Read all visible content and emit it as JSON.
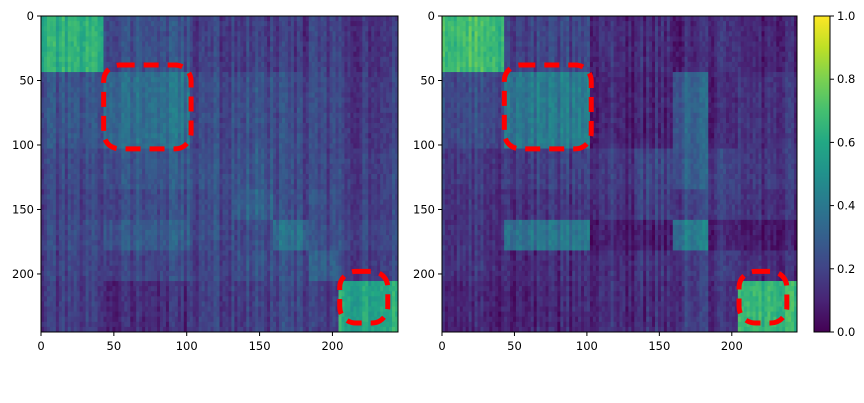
{
  "chart_data": [
    {
      "type": "heatmap",
      "title": "",
      "xlabel": "",
      "ylabel": "",
      "xlim": [
        0,
        245
      ],
      "ylim": [
        245,
        0
      ],
      "x_ticks": [
        "0",
        "50",
        "100",
        "150",
        "200"
      ],
      "y_ticks": [
        "0",
        "50",
        "100",
        "150",
        "200"
      ],
      "colormap": "viridis",
      "value_range": [
        0.0,
        1.0
      ],
      "block_boundaries": [
        0,
        43,
        103,
        133,
        160,
        183,
        205,
        245
      ],
      "blocks": [
        [
          0.62,
          0.24,
          0.18,
          0.18,
          0.16,
          0.18,
          0.16
        ],
        [
          0.24,
          0.36,
          0.22,
          0.24,
          0.22,
          0.2,
          0.18
        ],
        [
          0.2,
          0.26,
          0.24,
          0.26,
          0.22,
          0.2,
          0.2
        ],
        [
          0.18,
          0.22,
          0.22,
          0.3,
          0.22,
          0.22,
          0.2
        ],
        [
          0.2,
          0.28,
          0.22,
          0.22,
          0.36,
          0.22,
          0.22
        ],
        [
          0.18,
          0.2,
          0.2,
          0.24,
          0.22,
          0.28,
          0.2
        ],
        [
          0.16,
          0.12,
          0.18,
          0.18,
          0.2,
          0.16,
          0.6
        ]
      ],
      "highlight_boxes": [
        {
          "x": [
            43,
            103
          ],
          "y": [
            38,
            103
          ]
        },
        {
          "x": [
            205,
            238
          ],
          "y": [
            198,
            238
          ]
        }
      ],
      "highlight_color": "#ff0000"
    },
    {
      "type": "heatmap",
      "title": "",
      "xlabel": "",
      "ylabel": "",
      "xlim": [
        0,
        245
      ],
      "ylim": [
        245,
        0
      ],
      "x_ticks": [
        "0",
        "50",
        "100",
        "150",
        "200"
      ],
      "y_ticks": [
        "0",
        "50",
        "100",
        "150",
        "200"
      ],
      "colormap": "viridis",
      "value_range": [
        0.0,
        1.0
      ],
      "block_boundaries": [
        0,
        43,
        103,
        133,
        160,
        183,
        205,
        245
      ],
      "blocks": [
        [
          0.68,
          0.2,
          0.12,
          0.12,
          0.1,
          0.12,
          0.1
        ],
        [
          0.22,
          0.4,
          0.1,
          0.1,
          0.3,
          0.1,
          0.14
        ],
        [
          0.16,
          0.18,
          0.16,
          0.2,
          0.28,
          0.18,
          0.16
        ],
        [
          0.14,
          0.14,
          0.14,
          0.18,
          0.18,
          0.16,
          0.14
        ],
        [
          0.14,
          0.38,
          0.08,
          0.08,
          0.4,
          0.08,
          0.06
        ],
        [
          0.14,
          0.12,
          0.12,
          0.14,
          0.16,
          0.16,
          0.12
        ],
        [
          0.1,
          0.1,
          0.12,
          0.12,
          0.16,
          0.12,
          0.66
        ]
      ],
      "highlight_boxes": [
        {
          "x": [
            43,
            103
          ],
          "y": [
            38,
            103
          ]
        },
        {
          "x": [
            205,
            238
          ],
          "y": [
            198,
            238
          ]
        }
      ],
      "highlight_color": "#ff0000"
    }
  ],
  "colorbar": {
    "min": 0.0,
    "max": 1.0,
    "ticks": [
      "0.0",
      "0.2",
      "0.4",
      "0.6",
      "0.8",
      "1.0"
    ],
    "colormap": "viridis"
  }
}
